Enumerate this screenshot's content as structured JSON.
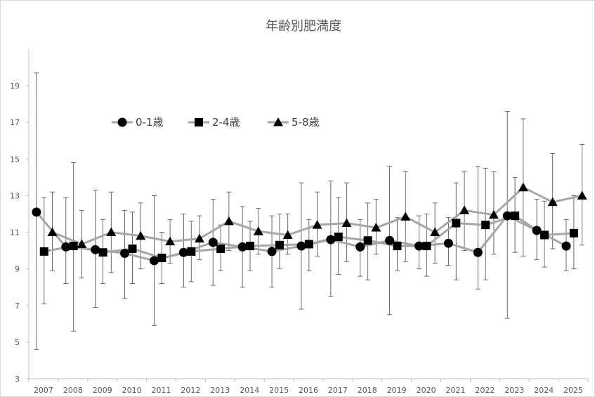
{
  "chart_data": {
    "type": "line",
    "title": "年齢別肥満度",
    "xlabel": "",
    "ylabel": "",
    "ylim": [
      3,
      21
    ],
    "yticks": [
      3,
      5,
      7,
      9,
      11,
      13,
      15,
      17,
      19
    ],
    "categories": [
      "2007",
      "2008",
      "2009",
      "2010",
      "2011",
      "2012",
      "2013",
      "2014",
      "2015",
      "2016",
      "2017",
      "2018",
      "2019",
      "2020",
      "2021",
      "2022",
      "2023",
      "2024",
      "2025"
    ],
    "grid": false,
    "legend_position": "top-left",
    "colors": {
      "line": "#a6a6a6",
      "marker": "#000000",
      "errorbar": "#595959",
      "axis": "#bfbfbf",
      "text": "#595959"
    },
    "series": [
      {
        "name": "0-1歳",
        "marker": "circle",
        "values": [
          12.1,
          10.2,
          10.05,
          9.85,
          9.45,
          9.9,
          10.45,
          10.2,
          9.95,
          10.25,
          10.6,
          10.2,
          10.55,
          10.25,
          10.4,
          9.9,
          11.9,
          11.1,
          10.25
        ],
        "err_low": [
          4.6,
          8.2,
          6.9,
          7.4,
          5.9,
          8.0,
          8.1,
          8.0,
          8.0,
          6.8,
          7.5,
          8.6,
          6.5,
          9.0,
          9.2,
          7.9,
          6.3,
          9.5,
          8.9
        ],
        "err_high": [
          19.7,
          12.9,
          13.3,
          12.2,
          13.0,
          12.0,
          12.8,
          12.4,
          11.9,
          13.7,
          13.8,
          11.7,
          14.6,
          11.9,
          11.8,
          14.6,
          17.6,
          12.8,
          11.7
        ]
      },
      {
        "name": "2-4歳",
        "marker": "square",
        "values": [
          9.95,
          10.25,
          9.9,
          10.1,
          9.6,
          9.95,
          10.1,
          10.25,
          10.3,
          10.35,
          10.75,
          10.55,
          10.25,
          10.25,
          11.5,
          11.4,
          11.9,
          10.85,
          10.95
        ],
        "err_low": [
          7.1,
          5.6,
          8.2,
          8.2,
          8.2,
          8.3,
          8.9,
          8.9,
          9.0,
          8.9,
          8.7,
          8.4,
          8.9,
          8.6,
          8.4,
          8.4,
          9.9,
          9.1,
          9.0
        ],
        "err_high": [
          12.9,
          14.8,
          11.7,
          12.1,
          11.0,
          11.6,
          11.4,
          11.6,
          12.0,
          11.7,
          12.9,
          12.6,
          11.8,
          12.0,
          13.7,
          14.5,
          14.0,
          12.7,
          13.0
        ]
      },
      {
        "name": "5-8歳",
        "marker": "triangle",
        "values": [
          11.0,
          10.35,
          11.0,
          10.8,
          10.5,
          10.65,
          11.6,
          11.05,
          10.85,
          11.4,
          11.5,
          11.25,
          11.85,
          11.0,
          12.2,
          11.95,
          13.45,
          12.65,
          13.0
        ],
        "err_low": [
          8.9,
          8.5,
          8.8,
          9.0,
          9.3,
          9.5,
          10.0,
          9.8,
          9.8,
          9.7,
          9.4,
          9.8,
          9.4,
          9.3,
          10.0,
          9.8,
          9.7,
          10.1,
          10.3
        ],
        "err_high": [
          13.2,
          12.2,
          13.2,
          12.6,
          11.7,
          11.9,
          13.2,
          12.3,
          12.0,
          13.2,
          13.7,
          12.8,
          14.3,
          12.6,
          14.3,
          14.3,
          17.2,
          15.3,
          15.8
        ]
      }
    ]
  }
}
